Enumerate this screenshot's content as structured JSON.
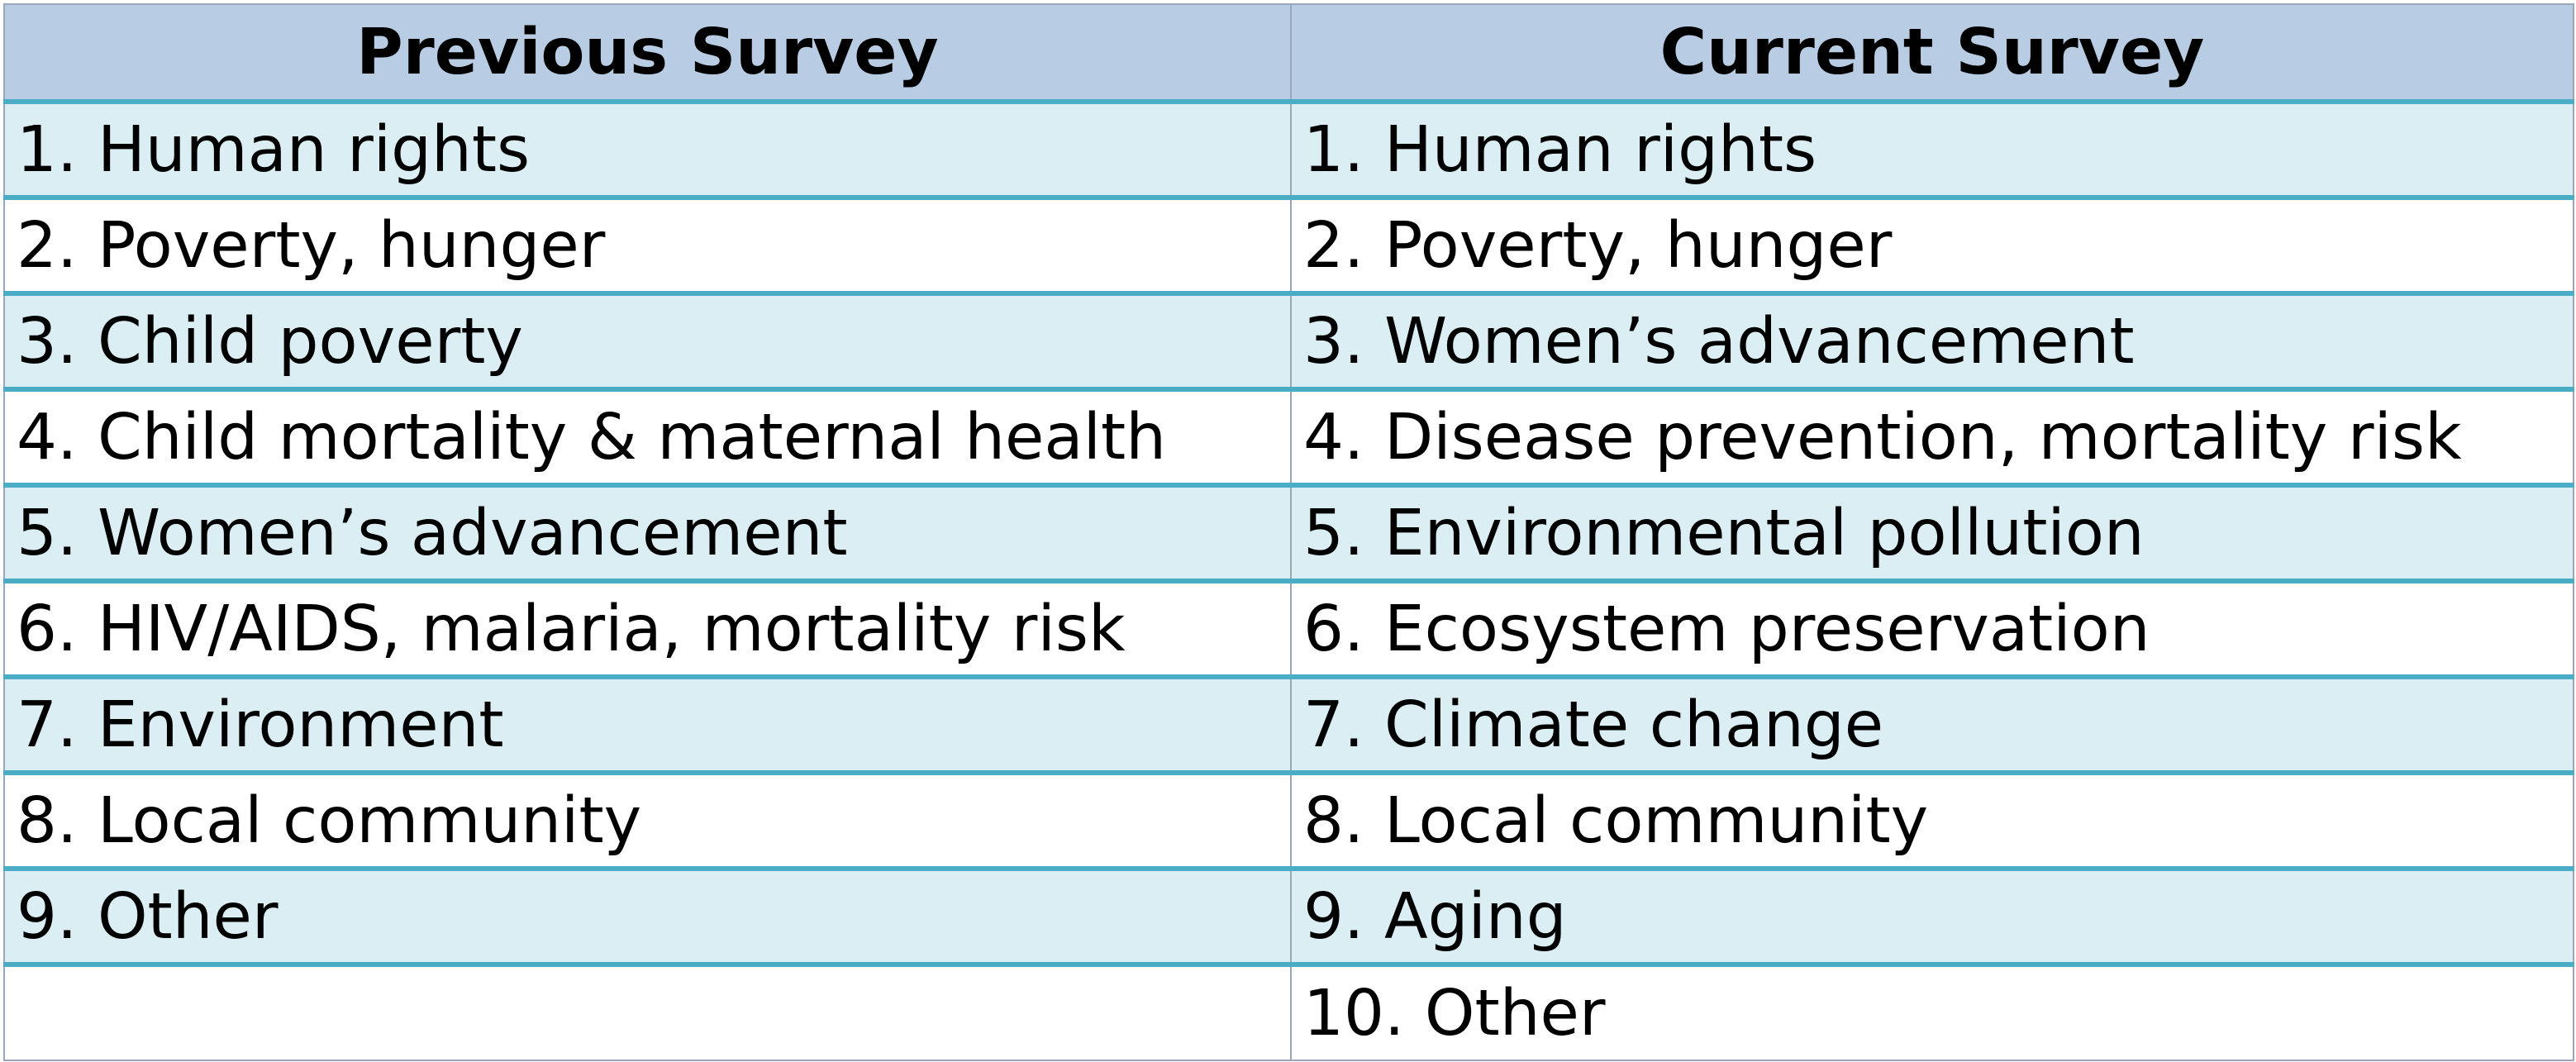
{
  "table": {
    "headers": [
      "Previous Survey",
      "Current Survey"
    ],
    "rows": [
      [
        "1. Human rights",
        "1. Human rights"
      ],
      [
        "2. Poverty, hunger",
        "2. Poverty, hunger"
      ],
      [
        "3. Child poverty",
        "3. Women’s advancement"
      ],
      [
        "4. Child mortality & maternal health",
        "4. Disease prevention, mortality risk"
      ],
      [
        "5. Women’s advancement",
        "5. Environmental pollution"
      ],
      [
        "6. HIV/AIDS, malaria, mortality risk",
        "6. Ecosystem preservation"
      ],
      [
        "7. Environment",
        "7. Climate change"
      ],
      [
        "8. Local community",
        "8. Local community"
      ],
      [
        "9. Other",
        "9. Aging"
      ],
      [
        "",
        "10. Other"
      ]
    ]
  },
  "colors": {
    "header_background": "#b8cce4",
    "band_background": "#dbeef3",
    "row_divider": "#4bacc6"
  }
}
